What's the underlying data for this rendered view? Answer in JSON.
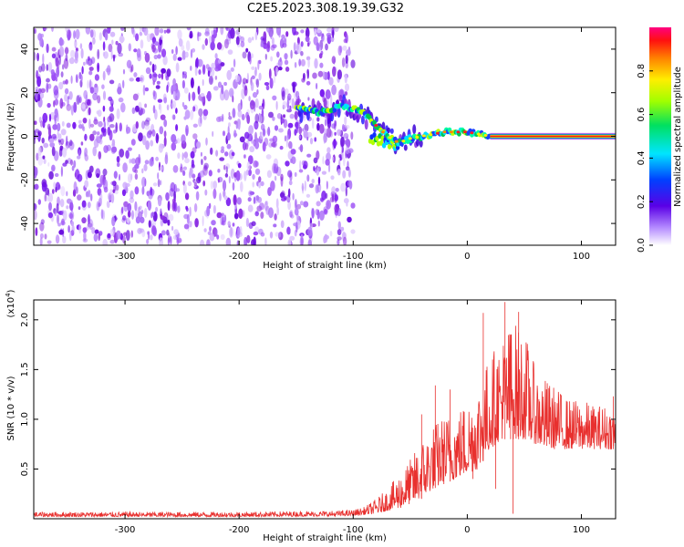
{
  "title": "C2E5.2023.308.19.39.G32",
  "chart_data": [
    {
      "type": "heatmap",
      "title": "C2E5.2023.308.19.39.G32",
      "xlabel": "Height of straight line (km)",
      "ylabel": "Frequency (Hz)",
      "xlim": [
        -380,
        130
      ],
      "ylim": [
        -50,
        50
      ],
      "xticks": [
        -300,
        -200,
        -100,
        0,
        100
      ],
      "yticks": [
        -40,
        -20,
        0,
        20,
        40
      ],
      "xtick_labels": [
        "-300",
        "-200",
        "-100",
        "0",
        "100"
      ],
      "ytick_labels": [
        "-40",
        "-20",
        "0",
        "20",
        "40"
      ],
      "noise_region": {
        "x_from": -380,
        "x_to": -100,
        "y_from": -50,
        "y_to": 50
      },
      "signal_track": {
        "x": [
          -150,
          -140,
          -130,
          -120,
          -110,
          -100,
          -90,
          -80,
          -70,
          -60,
          -50,
          -40,
          -30,
          -20,
          -10,
          0,
          10,
          20,
          30,
          40,
          60,
          80,
          100,
          130
        ],
        "freq": [
          13,
          12,
          11,
          12,
          14,
          13,
          10,
          5,
          0,
          -3,
          -1,
          0,
          1,
          2,
          2,
          2,
          1,
          0,
          0,
          0,
          0,
          0,
          0,
          0
        ]
      },
      "lower_branch": {
        "x": [
          -85,
          -80,
          -75,
          -70,
          -65,
          -60
        ],
        "freq": [
          -2,
          -1,
          -2,
          -3,
          -4,
          -6
        ]
      },
      "colorbar": {
        "label": "Normalized spectral amplitude",
        "range": [
          0.0,
          1.0
        ],
        "ticks": [
          0.0,
          0.2,
          0.4,
          0.6,
          0.8
        ],
        "tick_labels": [
          "0.0",
          "0.2",
          "0.4",
          "0.6",
          "0.8"
        ],
        "colormap": "rainbow"
      }
    },
    {
      "type": "line",
      "xlabel": "Height of straight line (km)",
      "ylabel": "SNR (10 * v/v)",
      "multiplier_label": "(x10",
      "multiplier_exp": "4",
      "xlim": [
        -380,
        130
      ],
      "ylim": [
        0,
        22000
      ],
      "xticks": [
        -300,
        -200,
        -100,
        0,
        100
      ],
      "yticks": [
        5000,
        10000,
        15000,
        20000
      ],
      "xtick_labels": [
        "-300",
        "-200",
        "-100",
        "0",
        "100"
      ],
      "ytick_labels": [
        "0.5",
        "1.0",
        "1.5",
        "2.0"
      ],
      "color": "#e8302e",
      "envelope": {
        "x": [
          -380,
          -300,
          -200,
          -120,
          -100,
          -90,
          -80,
          -70,
          -60,
          -50,
          -40,
          -30,
          -20,
          -10,
          0,
          10,
          20,
          30,
          40,
          50,
          60,
          70,
          80,
          90,
          100,
          110,
          120,
          130
        ],
        "low": [
          200,
          200,
          200,
          250,
          300,
          400,
          500,
          800,
          1000,
          1500,
          2000,
          3000,
          3500,
          4000,
          4500,
          5000,
          7000,
          8000,
          8000,
          8000,
          7500,
          7000,
          7000,
          7000,
          7000,
          7000,
          7000,
          7000
        ],
        "high": [
          700,
          700,
          700,
          800,
          900,
          1200,
          2000,
          3000,
          4500,
          6000,
          8000,
          9500,
          10500,
          11000,
          12000,
          14000,
          16500,
          18500,
          20000,
          19000,
          15000,
          14000,
          13000,
          12000,
          12000,
          11500,
          11500,
          11000
        ]
      },
      "spikes": [
        {
          "x": -28,
          "y": 13400
        },
        {
          "x": 14,
          "y": 20700
        },
        {
          "x": 33,
          "y": 21800
        },
        {
          "x": 45,
          "y": 20800
        },
        {
          "x": 38,
          "y": 18500
        },
        {
          "x": -40,
          "y": 10500
        },
        {
          "x": -15,
          "y": 13000
        },
        {
          "x": 128,
          "y": 12300
        }
      ],
      "dips": [
        {
          "x": 40,
          "y": 500
        },
        {
          "x": 25,
          "y": 3000
        },
        {
          "x": 5,
          "y": 4000
        }
      ]
    }
  ]
}
